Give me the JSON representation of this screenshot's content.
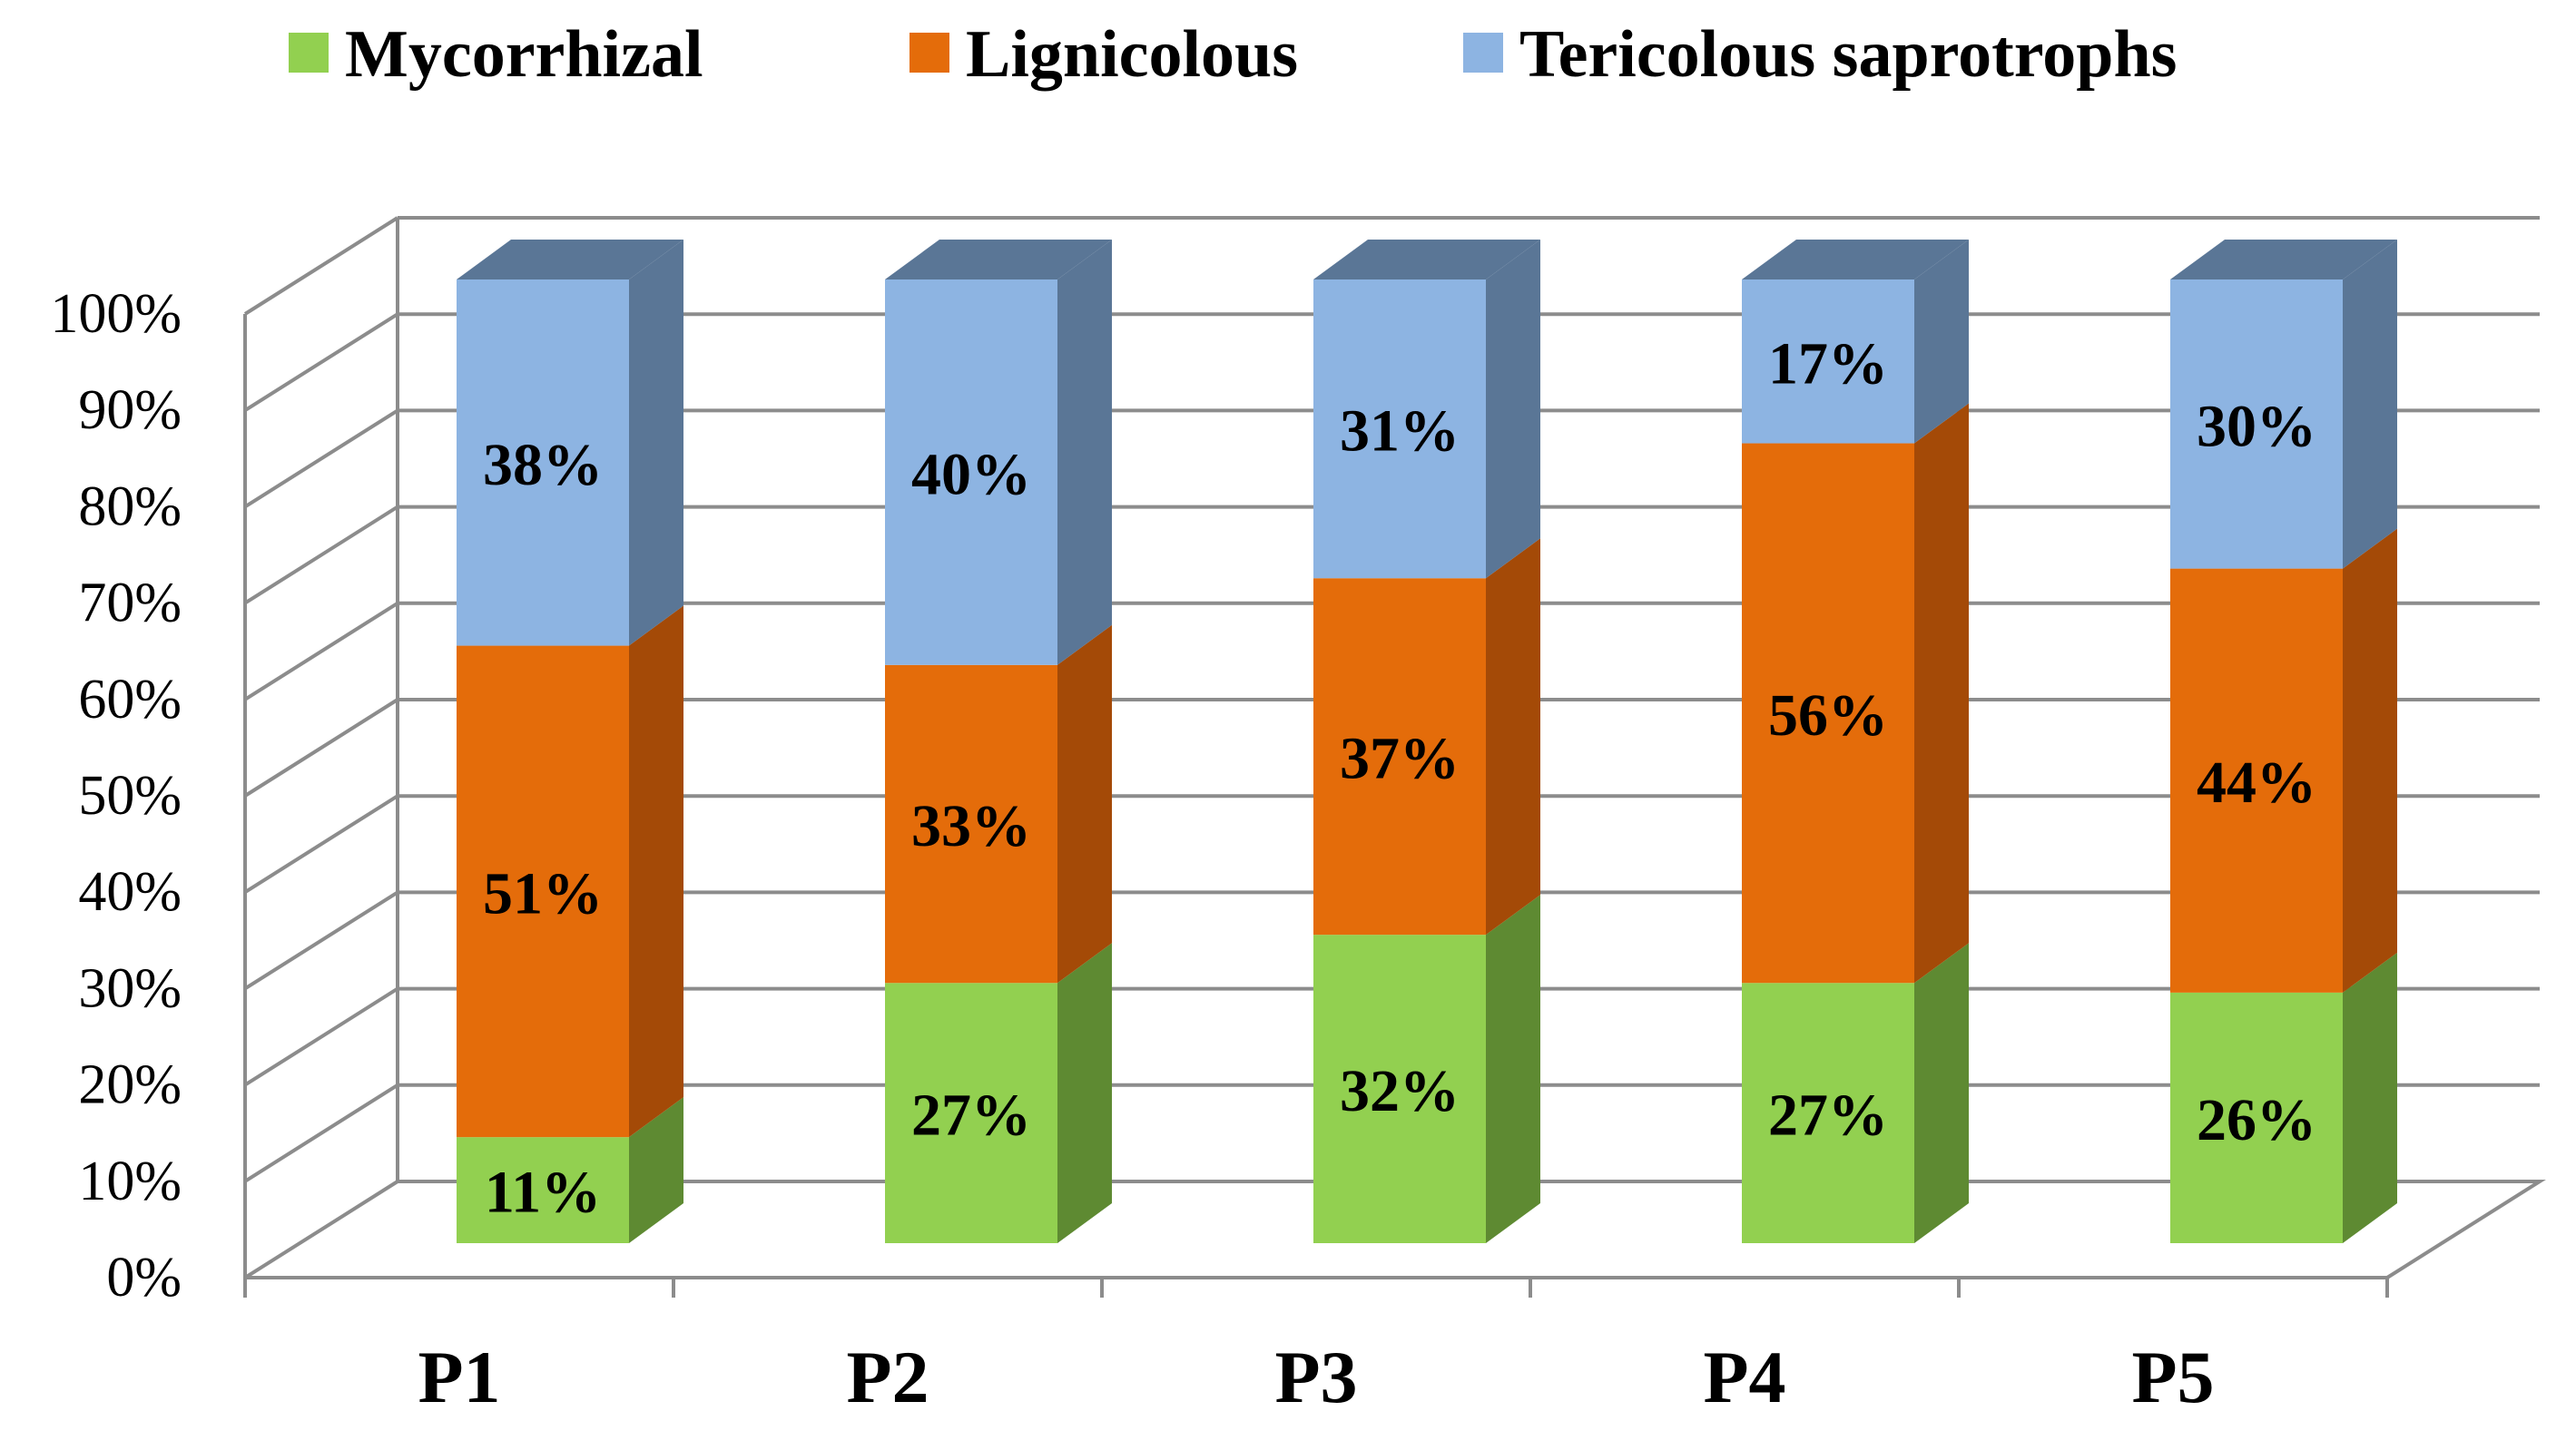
{
  "chart_data": {
    "type": "bar",
    "stacked": true,
    "percent": true,
    "title": "",
    "xlabel": "",
    "ylabel": "",
    "ylim": [
      0,
      100
    ],
    "yticks": [
      "0%",
      "10%",
      "20%",
      "30%",
      "40%",
      "50%",
      "60%",
      "70%",
      "80%",
      "90%",
      "100%"
    ],
    "grid": true,
    "legend_position": "top",
    "categories": [
      "P1",
      "P2",
      "P3",
      "P4",
      "P5"
    ],
    "series": [
      {
        "name": "Mycorrhizal",
        "values": [
          11,
          27,
          32,
          27,
          26
        ],
        "labels": [
          "11%",
          "27%",
          "32%",
          "27%",
          "26%"
        ],
        "color": "#92D050",
        "side_color": "#5E8A32"
      },
      {
        "name": "Lignicolous",
        "values": [
          51,
          33,
          37,
          56,
          44
        ],
        "labels": [
          "51%",
          "33%",
          "37%",
          "56%",
          "44%"
        ],
        "color": "#E46C0A",
        "side_color": "#A44A07"
      },
      {
        "name": "Tericolous saprotrophs",
        "values": [
          38,
          40,
          31,
          17,
          30
        ],
        "labels": [
          "38%",
          "40%",
          "31%",
          "17%",
          "30%"
        ],
        "color": "#8DB4E2",
        "side_color": "#5A7696"
      }
    ]
  }
}
